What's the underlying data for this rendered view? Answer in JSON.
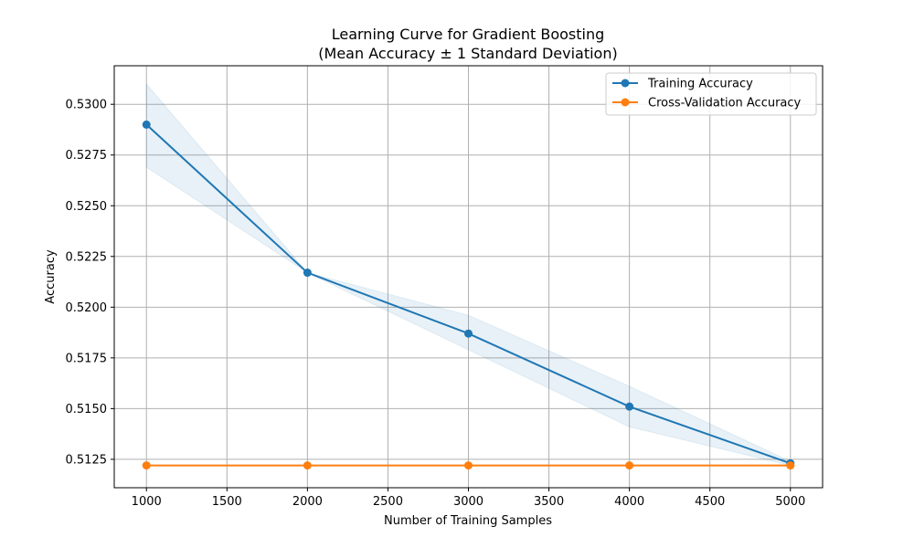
{
  "chart_data": {
    "type": "line",
    "title": "Learning Curve for Gradient Boosting",
    "subtitle": "(Mean Accuracy ± 1 Standard Deviation)",
    "xlabel": "Number of Training Samples",
    "ylabel": "Accuracy",
    "xlim": [
      800,
      5200
    ],
    "ylim": [
      0.5111,
      0.5319
    ],
    "x_ticks": [
      1000,
      1500,
      2000,
      2500,
      3000,
      3500,
      4000,
      4500,
      5000
    ],
    "x_tick_labels": [
      "1000",
      "1500",
      "2000",
      "2500",
      "3000",
      "3500",
      "4000",
      "4500",
      "5000"
    ],
    "y_ticks": [
      0.5125,
      0.515,
      0.5175,
      0.52,
      0.5225,
      0.525,
      0.5275,
      0.53
    ],
    "y_tick_labels": [
      "0.5125",
      "0.5150",
      "0.5175",
      "0.5200",
      "0.5225",
      "0.5250",
      "0.5275",
      "0.5300"
    ],
    "grid": true,
    "legend_position": "top-right",
    "x": [
      1000,
      2000,
      3000,
      4000,
      5000
    ],
    "series": [
      {
        "name": "Training Accuracy",
        "color": "#1f77b4",
        "values": [
          0.529,
          0.5217,
          0.5187,
          0.5151,
          0.5123
        ],
        "band_lower": [
          0.5269,
          0.5217,
          0.5179,
          0.5141,
          0.5122
        ],
        "band_upper": [
          0.531,
          0.5217,
          0.5196,
          0.5161,
          0.5124
        ]
      },
      {
        "name": "Cross-Validation Accuracy",
        "color": "#ff7f0e",
        "values": [
          0.5122,
          0.5122,
          0.5122,
          0.5122,
          0.5122
        ]
      }
    ]
  }
}
